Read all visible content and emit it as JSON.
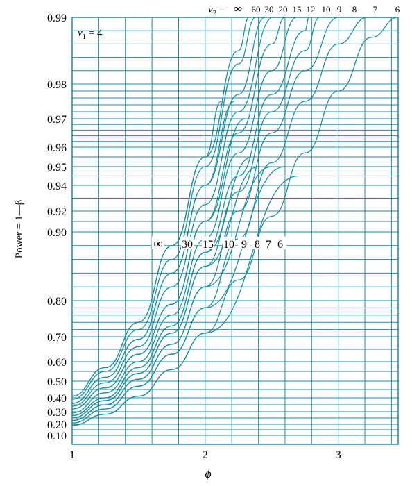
{
  "chart_data": {
    "type": "line",
    "title": "",
    "xlabel": "ϕ",
    "ylabel": "Power = 1—β",
    "xlim": [
      1,
      3.45
    ],
    "x_ticks": [
      "1",
      "2",
      "3"
    ],
    "y_ticks": [
      {
        "value": 0.99,
        "label": "0.99"
      },
      {
        "value": 0.98,
        "label": "0.98"
      },
      {
        "value": 0.97,
        "label": "0.97"
      },
      {
        "value": 0.96,
        "label": "0.96"
      },
      {
        "value": 0.95,
        "label": "0.95"
      },
      {
        "value": 0.94,
        "label": "0.94"
      },
      {
        "value": 0.92,
        "label": "0.92"
      },
      {
        "value": 0.9,
        "label": "0.90"
      },
      {
        "value": 0.8,
        "label": "0.80"
      },
      {
        "value": 0.7,
        "label": "0.70"
      },
      {
        "value": 0.6,
        "label": "0.60"
      },
      {
        "value": 0.5,
        "label": "0.50"
      },
      {
        "value": 0.4,
        "label": "0.40"
      },
      {
        "value": 0.3,
        "label": "0.30"
      },
      {
        "value": 0.2,
        "label": "0.20"
      },
      {
        "value": 0.1,
        "label": "0.10"
      }
    ],
    "y_grid": [
      0.99,
      0.988,
      0.986,
      0.984,
      0.982,
      0.98,
      0.978,
      0.976,
      0.974,
      0.972,
      0.97,
      0.968,
      0.966,
      0.964,
      0.962,
      0.96,
      0.955,
      0.95,
      0.945,
      0.94,
      0.93,
      0.92,
      0.91,
      0.9,
      0.88,
      0.86,
      0.84,
      0.82,
      0.8,
      0.78,
      0.76,
      0.74,
      0.72,
      0.7,
      0.65,
      0.6,
      0.55,
      0.5,
      0.45,
      0.4,
      0.35,
      0.3,
      0.25,
      0.2,
      0.15,
      0.1
    ],
    "x_grid": [
      1,
      1.2,
      1.4,
      1.6,
      1.8,
      2,
      2.2,
      2.4,
      2.6,
      2.8,
      3,
      3.2,
      3.4
    ],
    "panel_label": "v1 = 4",
    "top_series_label": "v2 =",
    "alpha_note": "",
    "series": [
      {
        "name": "∞",
        "x": [
          1,
          1.25,
          1.5,
          1.75,
          2.0,
          2.25,
          2.33
        ],
        "y": [
          0.41,
          0.57,
          0.74,
          0.88,
          0.955,
          0.985,
          0.99
        ]
      },
      {
        "name": "60",
        "x": [
          1,
          1.25,
          1.5,
          1.75,
          2.0,
          2.25,
          2.38
        ],
        "y": [
          0.39,
          0.55,
          0.72,
          0.86,
          0.95,
          0.983,
          0.99
        ]
      },
      {
        "name": "30",
        "x": [
          1,
          1.25,
          1.5,
          1.75,
          2.0,
          2.25,
          2.45
        ],
        "y": [
          0.36,
          0.52,
          0.69,
          0.84,
          0.94,
          0.977,
          0.99
        ]
      },
      {
        "name": "20",
        "x": [
          1,
          1.25,
          1.5,
          1.75,
          2.0,
          2.25,
          2.51
        ],
        "y": [
          0.34,
          0.49,
          0.66,
          0.82,
          0.925,
          0.972,
          0.99
        ]
      },
      {
        "name": "15",
        "x": [
          1,
          1.25,
          1.5,
          1.75,
          2.0,
          2.25,
          2.5,
          2.6
        ],
        "y": [
          0.32,
          0.46,
          0.63,
          0.79,
          0.91,
          0.965,
          0.986,
          0.99
        ]
      },
      {
        "name": "12",
        "x": [
          1,
          1.25,
          1.5,
          1.75,
          2.0,
          2.25,
          2.5,
          2.69
        ],
        "y": [
          0.29,
          0.43,
          0.6,
          0.76,
          0.89,
          0.957,
          0.982,
          0.99
        ]
      },
      {
        "name": "10",
        "x": [
          1,
          1.25,
          1.5,
          1.75,
          2.0,
          2.25,
          2.5,
          2.75,
          2.78
        ],
        "y": [
          0.27,
          0.4,
          0.57,
          0.73,
          0.87,
          0.945,
          0.977,
          0.988,
          0.99
        ]
      },
      {
        "name": "9",
        "x": [
          1,
          1.25,
          1.5,
          1.75,
          2.0,
          2.25,
          2.5,
          2.75,
          2.86
        ],
        "y": [
          0.25,
          0.38,
          0.54,
          0.71,
          0.85,
          0.935,
          0.972,
          0.985,
          0.99
        ]
      },
      {
        "name": "8",
        "x": [
          1,
          1.25,
          1.5,
          1.75,
          2.0,
          2.25,
          2.5,
          2.75,
          3.0,
          3.0
        ],
        "y": [
          0.23,
          0.35,
          0.51,
          0.67,
          0.82,
          0.92,
          0.965,
          0.982,
          0.99,
          0.99
        ]
      },
      {
        "name": "7",
        "x": [
          1,
          1.25,
          1.5,
          1.75,
          2.0,
          2.25,
          2.5,
          2.75,
          3.0,
          3.22
        ],
        "y": [
          0.21,
          0.32,
          0.47,
          0.63,
          0.78,
          0.89,
          0.952,
          0.975,
          0.986,
          0.99
        ]
      },
      {
        "name": "6",
        "x": [
          1,
          1.25,
          1.5,
          1.75,
          2.0,
          2.25,
          2.5,
          2.75,
          3.0,
          3.25,
          3.45
        ],
        "y": [
          0.19,
          0.28,
          0.41,
          0.56,
          0.71,
          0.83,
          0.915,
          0.957,
          0.978,
          0.987,
          0.99
        ]
      }
    ],
    "lower_series": [
      {
        "name": "∞",
        "x": [
          1,
          1.25,
          1.5,
          1.75,
          2.0,
          2.12
        ],
        "y": [
          0.41,
          0.57,
          0.74,
          0.88,
          0.955,
          0.975
        ]
      },
      {
        "name": "30",
        "x": [
          1,
          1.25,
          1.5,
          1.75,
          2.0,
          2.22
        ],
        "y": [
          0.36,
          0.52,
          0.69,
          0.84,
          0.94,
          0.975
        ]
      },
      {
        "name": "15",
        "x": [
          1,
          1.25,
          1.5,
          1.75,
          2.0,
          2.3
        ],
        "y": [
          0.32,
          0.46,
          0.63,
          0.79,
          0.91,
          0.97
        ]
      },
      {
        "name": "10",
        "x": [
          1,
          1.25,
          1.5,
          1.75,
          2.0,
          2.35
        ],
        "y": [
          0.27,
          0.4,
          0.57,
          0.73,
          0.87,
          0.955
        ]
      },
      {
        "name": "9",
        "x": [
          1,
          1.25,
          1.5,
          1.75,
          2.0,
          2.4
        ],
        "y": [
          0.25,
          0.38,
          0.54,
          0.71,
          0.85,
          0.95
        ]
      },
      {
        "name": "8",
        "x": [
          1,
          1.25,
          1.5,
          1.75,
          2.0,
          2.5
        ],
        "y": [
          0.23,
          0.35,
          0.51,
          0.67,
          0.82,
          0.95
        ]
      },
      {
        "name": "7",
        "x": [
          1,
          1.25,
          1.5,
          1.75,
          2.0,
          2.6
        ],
        "y": [
          0.21,
          0.32,
          0.47,
          0.63,
          0.78,
          0.95
        ]
      },
      {
        "name": "6",
        "x": [
          1,
          1.25,
          1.5,
          1.75,
          2.0,
          2.7
        ],
        "y": [
          0.19,
          0.28,
          0.41,
          0.56,
          0.71,
          0.945
        ]
      }
    ],
    "top_labels": [
      "∞",
      "60",
      "30",
      "20",
      "15",
      "12",
      "10",
      "9",
      "8",
      "7",
      "6"
    ],
    "mid_labels": [
      "∞",
      "30",
      "15",
      "10",
      "9",
      "8",
      "7",
      "6"
    ],
    "colors": {
      "curve": "#1b8ea3",
      "grid": "#1b8ea3",
      "frame": "#1b8ea3",
      "text": "#000000"
    }
  }
}
